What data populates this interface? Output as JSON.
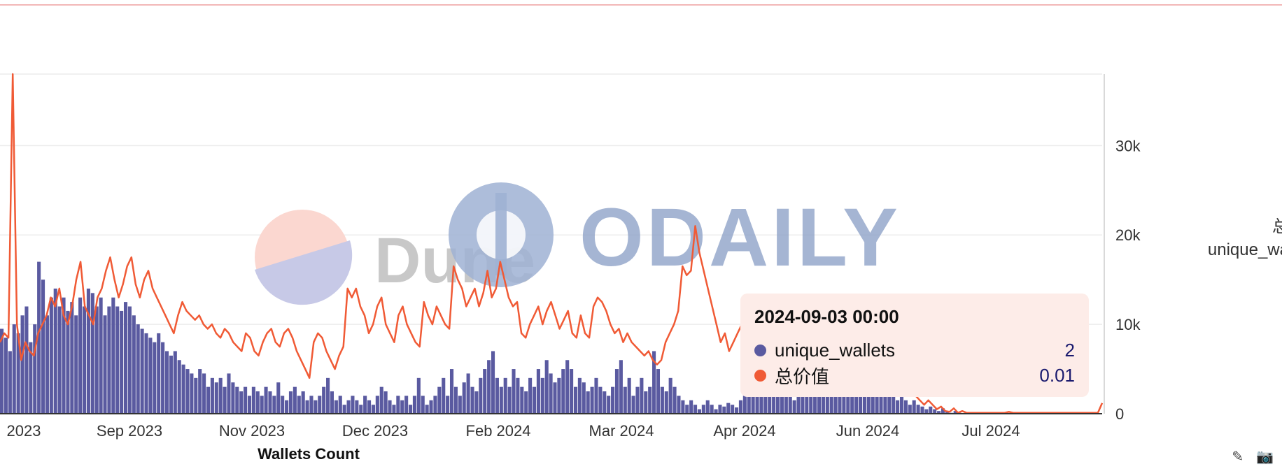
{
  "chart_data": {
    "type": "bar",
    "title": "",
    "xlabel": "Wallets Count",
    "ylabel": "",
    "x_ticks": [
      "2023",
      "Sep 2023",
      "Nov 2023",
      "Dec 2023",
      "Feb 2024",
      "Mar 2024",
      "Apr 2024",
      "Jun 2024",
      "Jul 2024"
    ],
    "y_right_ticks": [
      "0",
      "10k",
      "20k",
      "30k"
    ],
    "ylim_right": [
      0,
      38000
    ],
    "grid": true,
    "legend_placement": "right",
    "series": [
      {
        "name": "unique_wallets",
        "kind": "bar",
        "color": "#5a5aa0",
        "axis": "left",
        "values": [
          9.5,
          8.5,
          7,
          10,
          9,
          11,
          12,
          8,
          10,
          17,
          15,
          11,
          13,
          14,
          12,
          13,
          11.5,
          12.5,
          11,
          13,
          12,
          14,
          13.5,
          12,
          13,
          11,
          12,
          13,
          12,
          11.5,
          12.5,
          12,
          11,
          10,
          9.5,
          9,
          8.5,
          8,
          9,
          8,
          7,
          6.5,
          7,
          6,
          5.5,
          5,
          4.5,
          4,
          5,
          4.5,
          3,
          4,
          3.5,
          4,
          3,
          4.5,
          3.5,
          3,
          2.5,
          3,
          2,
          3,
          2.5,
          2,
          3,
          2.5,
          2,
          3.5,
          2,
          1.5,
          2.5,
          3,
          2,
          2.5,
          1.5,
          2,
          1.5,
          2,
          3,
          4,
          2.5,
          1.5,
          2,
          1,
          1.5,
          2,
          1.5,
          1,
          2,
          1.5,
          1,
          2,
          3,
          2.5,
          1.5,
          1,
          2,
          1.5,
          2,
          1,
          2,
          4,
          2,
          1,
          1.5,
          2,
          3,
          4,
          2,
          5,
          3,
          2,
          3.5,
          4.5,
          3,
          2.5,
          4,
          5,
          6,
          7,
          4,
          3,
          4,
          3,
          5,
          4,
          3,
          2.5,
          4,
          3,
          5,
          4,
          6,
          4.5,
          3.5,
          4,
          5,
          6,
          5,
          3,
          4,
          3.5,
          2.5,
          3,
          4,
          3,
          2.5,
          2,
          3,
          5,
          6,
          3,
          4,
          2,
          3,
          4,
          2.5,
          3,
          7,
          5,
          3,
          2.5,
          4,
          3,
          2,
          1.5,
          1,
          1.5,
          1,
          0.5,
          1,
          1.5,
          1,
          0.5,
          1,
          0.8,
          1.2,
          1,
          0.7,
          1.5,
          2,
          2.5,
          3,
          2,
          3.5,
          4.5,
          3,
          2.5,
          3,
          2,
          2.5,
          2,
          1.5,
          2,
          2.5,
          3,
          2.5,
          2,
          2,
          2.5,
          3,
          2.5,
          3,
          4,
          3.5,
          3,
          4,
          3.5,
          4,
          3.5,
          3,
          3.5,
          3,
          2.5,
          3,
          2.5,
          2,
          1.5,
          2,
          1.5,
          1,
          1.5,
          1,
          0.8,
          0.5,
          0.8,
          0.5,
          0.3,
          0.6,
          0.2,
          0.1,
          0.3,
          0.1,
          0,
          0,
          0,
          0,
          0,
          0,
          0,
          0,
          0,
          0,
          0,
          0,
          0,
          0,
          0,
          0,
          0,
          0,
          0,
          0,
          0,
          0,
          0,
          0,
          0,
          0,
          0,
          0,
          0,
          0,
          0,
          0,
          0,
          0
        ]
      },
      {
        "name": "总价值",
        "kind": "line",
        "color": "#f05a35",
        "axis": "right",
        "values": [
          8000,
          9000,
          8500,
          38000,
          10000,
          6000,
          8000,
          7000,
          6500,
          9000,
          10000,
          11000,
          13000,
          12000,
          14000,
          11000,
          10000,
          12000,
          15000,
          17000,
          12000,
          11000,
          10000,
          13000,
          14000,
          16000,
          17500,
          15000,
          13000,
          14500,
          16500,
          17500,
          14500,
          13000,
          15000,
          16000,
          14000,
          13000,
          12000,
          11000,
          10000,
          9000,
          11000,
          12500,
          11500,
          11000,
          10500,
          11000,
          10000,
          9500,
          10000,
          9000,
          8500,
          9500,
          9000,
          8000,
          7500,
          7000,
          9000,
          8500,
          7000,
          6500,
          8000,
          9000,
          9500,
          8000,
          7500,
          9000,
          9500,
          8500,
          7000,
          6000,
          5000,
          4000,
          8000,
          9000,
          8500,
          7000,
          6000,
          5000,
          6500,
          7500,
          14000,
          13000,
          14000,
          12000,
          11000,
          9000,
          10000,
          12000,
          13000,
          10000,
          9000,
          8000,
          11000,
          12000,
          10000,
          9000,
          8000,
          7500,
          12500,
          11000,
          10000,
          12000,
          11000,
          10000,
          9500,
          16500,
          15000,
          14000,
          12000,
          13000,
          14000,
          12000,
          13500,
          16000,
          13000,
          14000,
          17000,
          15000,
          13000,
          12000,
          12500,
          9000,
          8500,
          10000,
          11000,
          12000,
          10000,
          11500,
          12500,
          11000,
          9500,
          10500,
          11500,
          9000,
          8500,
          11000,
          9000,
          8500,
          12000,
          13000,
          12500,
          11500,
          10000,
          9000,
          9500,
          8000,
          9000,
          8000,
          7500,
          7000,
          6500,
          7000,
          6000,
          5500,
          6000,
          8000,
          9000,
          10000,
          11500,
          16500,
          15500,
          16000,
          21000,
          18000,
          16000,
          14000,
          12000,
          10000,
          8000,
          9000,
          7000,
          8000,
          9000,
          10000,
          9000,
          8000,
          7000,
          6500,
          6000,
          5500,
          5000,
          4500,
          5000,
          6000,
          7000,
          8000,
          9000,
          8500,
          8000,
          9000,
          9500,
          8500,
          7000,
          6000,
          5000,
          4000,
          3500,
          4000,
          3000,
          5000,
          4000,
          3000,
          5000,
          7000,
          8000,
          6000,
          4000,
          3000,
          2500,
          3000,
          2000,
          2500,
          3000,
          2500,
          2000,
          1500,
          1000,
          1500,
          1000,
          500,
          800,
          300,
          200,
          600,
          100,
          300,
          100,
          100,
          100,
          100,
          100,
          100,
          100,
          100,
          100,
          100,
          200,
          100,
          100,
          100,
          100,
          100,
          100,
          100,
          100,
          100,
          100,
          100,
          100,
          100,
          100,
          100,
          100,
          100,
          100,
          100,
          100,
          100,
          1200
        ]
      }
    ]
  },
  "watermarks": {
    "dune": "Dune",
    "odaily": "ODAILY"
  },
  "tooltip": {
    "title": "2024-09-03 00:00",
    "rows": [
      {
        "name": "unique_wallets",
        "value": "2",
        "color": "#5a5aa0"
      },
      {
        "name": "总价值",
        "value": "0.01",
        "color": "#f05a35"
      }
    ]
  },
  "legend_right": {
    "line1": "总",
    "line2": "unique_wa"
  },
  "icons": {
    "left": "edit-icon",
    "right": "camera-icon"
  }
}
